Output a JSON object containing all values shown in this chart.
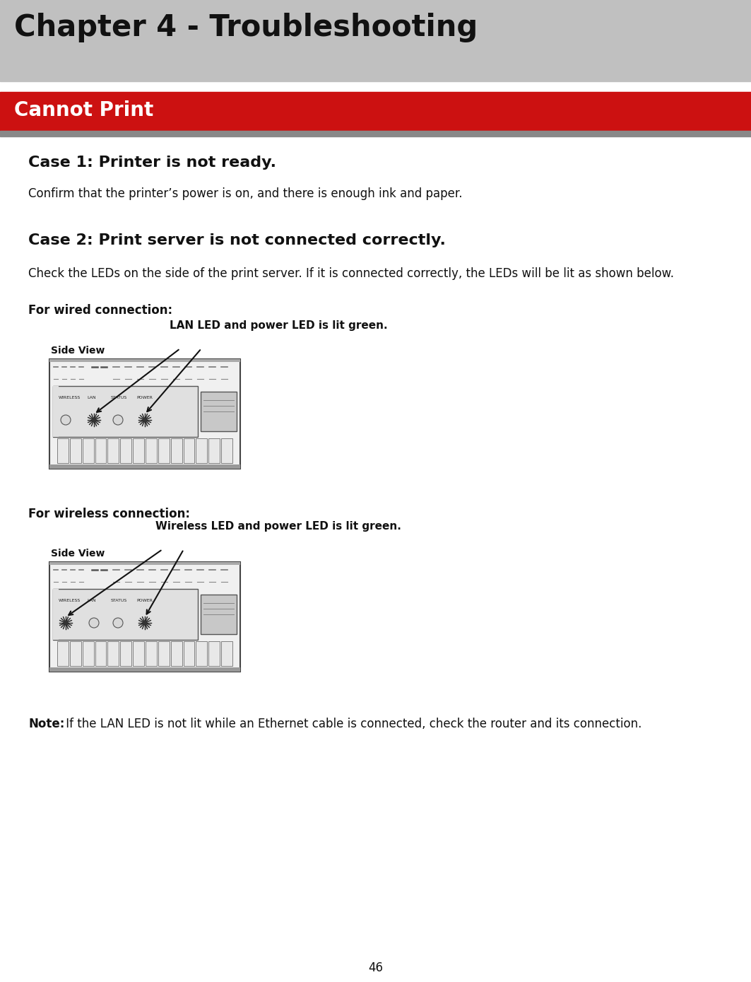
{
  "page_bg": "#ffffff",
  "header_bg": "#c0c0c0",
  "header_text": "Chapter 4 - Troubleshooting",
  "header_text_color": "#111111",
  "header_font_size": 30,
  "red_bar_bg": "#cc1111",
  "red_bar_text": "Cannot Print",
  "red_bar_text_color": "#ffffff",
  "red_bar_font_size": 20,
  "case1_title": "Case 1: Printer is not ready.",
  "case1_body": "Confirm that the printer’s power is on, and there is enough ink and paper.",
  "case2_title": "Case 2: Print server is not connected correctly.",
  "case2_body": "Check the LEDs on the side of the print server. If it is connected correctly, the LEDs will be lit as shown below.",
  "wired_label": "For wired connection:",
  "wired_annotation": "LAN LED and power LED is lit green.",
  "wireless_label": "For wireless connection:",
  "wireless_annotation": "Wireless LED and power LED is lit green.",
  "side_view_text": "Side View",
  "note_bold": "Note:",
  "note_rest": " If the LAN LED is not lit while an Ethernet cable is connected, check the router and its connection.",
  "page_number": "46",
  "title_font_size": 16,
  "body_font_size": 12,
  "label_font_size": 12,
  "annotation_font_size": 11
}
